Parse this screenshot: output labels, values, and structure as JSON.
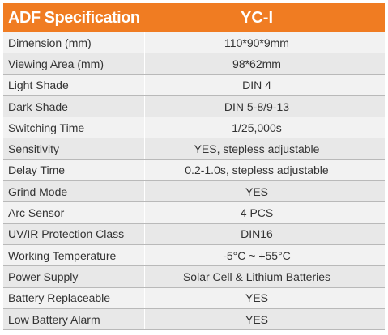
{
  "header": {
    "label": "ADF Specification",
    "model": "YC-I"
  },
  "rows": [
    {
      "label": "Dimension (mm)",
      "value": "110*90*9mm"
    },
    {
      "label": "Viewing Area (mm)",
      "value": "98*62mm"
    },
    {
      "label": "Light Shade",
      "value": "DIN 4"
    },
    {
      "label": "Dark Shade",
      "value": "DIN 5-8/9-13"
    },
    {
      "label": "Switching Time",
      "value": "1/25,000s"
    },
    {
      "label": "Sensitivity",
      "value": "YES, stepless adjustable"
    },
    {
      "label": "Delay Time",
      "value": "0.2-1.0s, stepless adjustable"
    },
    {
      "label": "Grind Mode",
      "value": "YES"
    },
    {
      "label": "Arc Sensor",
      "value": "4 PCS"
    },
    {
      "label": "UV/IR Protection Class",
      "value": "DIN16"
    },
    {
      "label": "Working Temperature",
      "value": "-5°C ~ +55°C"
    },
    {
      "label": "Power Supply",
      "value": "Solar Cell & Lithium Batteries"
    },
    {
      "label": "Battery Replaceable",
      "value": "YES"
    },
    {
      "label": "Low Battery Alarm",
      "value": "YES"
    }
  ],
  "colors": {
    "header_bg": "#f07c22",
    "header_text": "#ffffff",
    "row_text": "#333333"
  }
}
